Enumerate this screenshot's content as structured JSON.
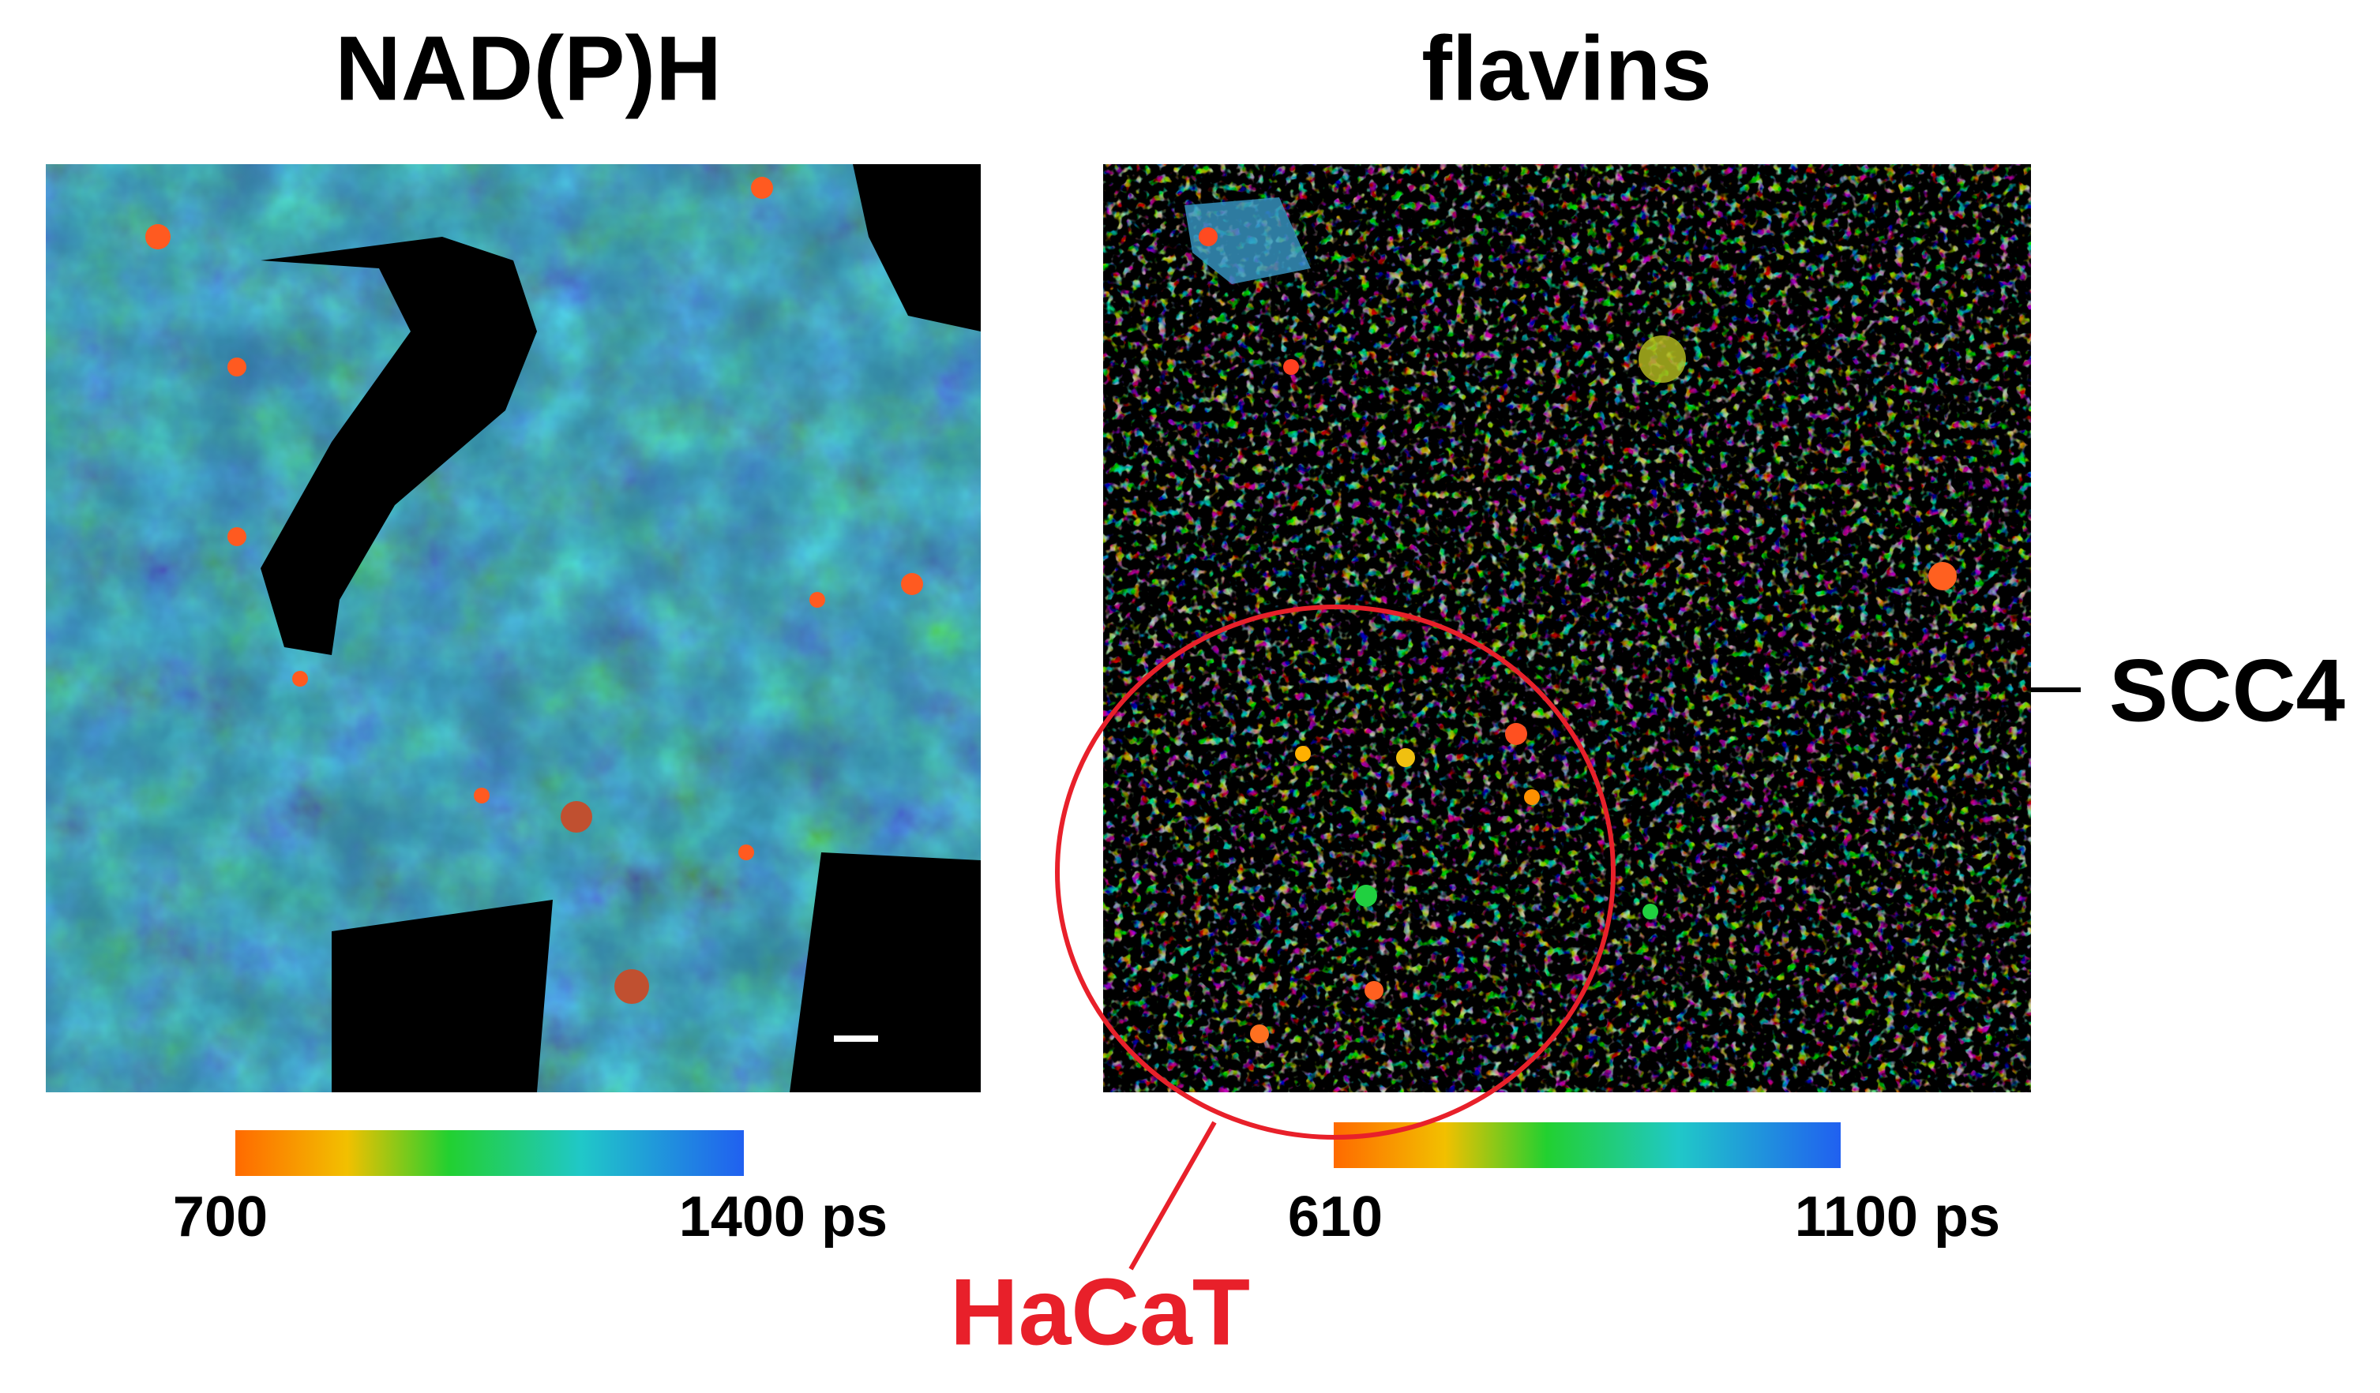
{
  "panels": [
    {
      "title": "NAD(P)H",
      "colorbar": {
        "min_label": "700",
        "max_label": "1400 ps"
      }
    },
    {
      "title": "flavins",
      "colorbar": {
        "min_label": "610",
        "max_label": "1100 ps"
      }
    }
  ],
  "annotations": {
    "right": "SCC4",
    "circle": "HaCaT"
  }
}
